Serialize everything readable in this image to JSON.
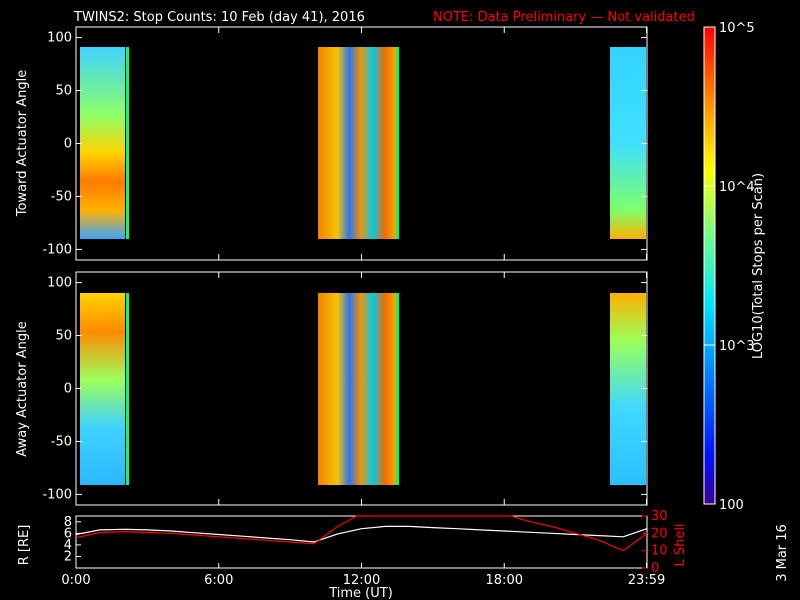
{
  "header": {
    "title": "TWINS2: Stop Counts: 10 Feb (day  41), 2016",
    "note": "NOTE: Data Preliminary — Not validated"
  },
  "side_stamp": "3 Mar 16",
  "colors": {
    "background": "#000000",
    "foreground": "#ffffff",
    "note_red": "#ff0000"
  },
  "chart_data": [
    {
      "type": "heatmap",
      "panel": "toward",
      "ylabel": "Toward Actuator Angle",
      "ylim": [
        -110,
        110
      ],
      "yticks": [
        100,
        50,
        0,
        -50,
        -100
      ],
      "xlim": [
        0,
        24
      ],
      "data_bands_hours": [
        [
          0,
          2.1
        ],
        [
          10.1,
          13.6
        ],
        [
          22.9,
          24
        ]
      ],
      "colorscale": "log10 counts 100 to 100000 (blue to red)"
    },
    {
      "type": "heatmap",
      "panel": "away",
      "ylabel": "Away Actuator Angle",
      "ylim": [
        -110,
        110
      ],
      "yticks": [
        100,
        50,
        0,
        -50,
        -100
      ],
      "xlim": [
        0,
        24
      ],
      "data_bands_hours": [
        [
          0,
          2.1
        ],
        [
          10.1,
          13.6
        ],
        [
          22.9,
          24
        ]
      ]
    },
    {
      "type": "line",
      "panel": "orbit",
      "xlabel": "Time (UT)",
      "ylabel_left": "R [RE]",
      "ylabel_right": "L Shell",
      "xticks": [
        "0:00",
        "6:00",
        "12:00",
        "18:00",
        "23:59"
      ],
      "xtick_hours": [
        0,
        6,
        12,
        18,
        23.98
      ],
      "yticks_left": [
        "8",
        "6",
        "4",
        "2"
      ],
      "yticks_left_values": [
        8,
        6,
        4,
        2
      ],
      "yticks_right": [
        "30",
        "20",
        "10",
        "0"
      ],
      "yticks_right_values": [
        30,
        20,
        10,
        0
      ],
      "ylim_left": [
        0,
        9
      ],
      "ylim_right": [
        0,
        30
      ],
      "series": [
        {
          "name": "R",
          "color": "#ffffff",
          "x": [
            0,
            1,
            2,
            3,
            4,
            5,
            6,
            7,
            8,
            9,
            10,
            11,
            12,
            13,
            14,
            15,
            16,
            17,
            18,
            19,
            20,
            21,
            22,
            23,
            24
          ],
          "y": [
            5.8,
            6.6,
            6.7,
            6.6,
            6.4,
            6.1,
            5.8,
            5.5,
            5.2,
            4.9,
            4.5,
            5.9,
            6.8,
            7.2,
            7.2,
            7.0,
            6.8,
            6.6,
            6.4,
            6.2,
            6.0,
            5.8,
            5.6,
            5.4,
            6.8
          ]
        },
        {
          "name": "L Shell",
          "color": "#ff0000",
          "x": [
            0,
            1,
            2,
            3,
            4,
            5,
            6,
            7,
            8,
            9,
            10,
            11,
            11.8,
            18.3,
            19,
            20,
            21,
            22,
            23,
            24
          ],
          "y": [
            17.5,
            20.5,
            21,
            20.5,
            20,
            19,
            18,
            17,
            16,
            15,
            14,
            24,
            30,
            30,
            27,
            24,
            20,
            16,
            10,
            20
          ]
        }
      ]
    },
    {
      "type": "colorbar",
      "label": "LOG10(Total Stops per Scan)",
      "range": [
        100,
        100000
      ],
      "ticks": [
        "10^5",
        "10^4",
        "10^3",
        "100"
      ],
      "tick_values": [
        100000,
        10000,
        1000,
        100
      ]
    }
  ]
}
